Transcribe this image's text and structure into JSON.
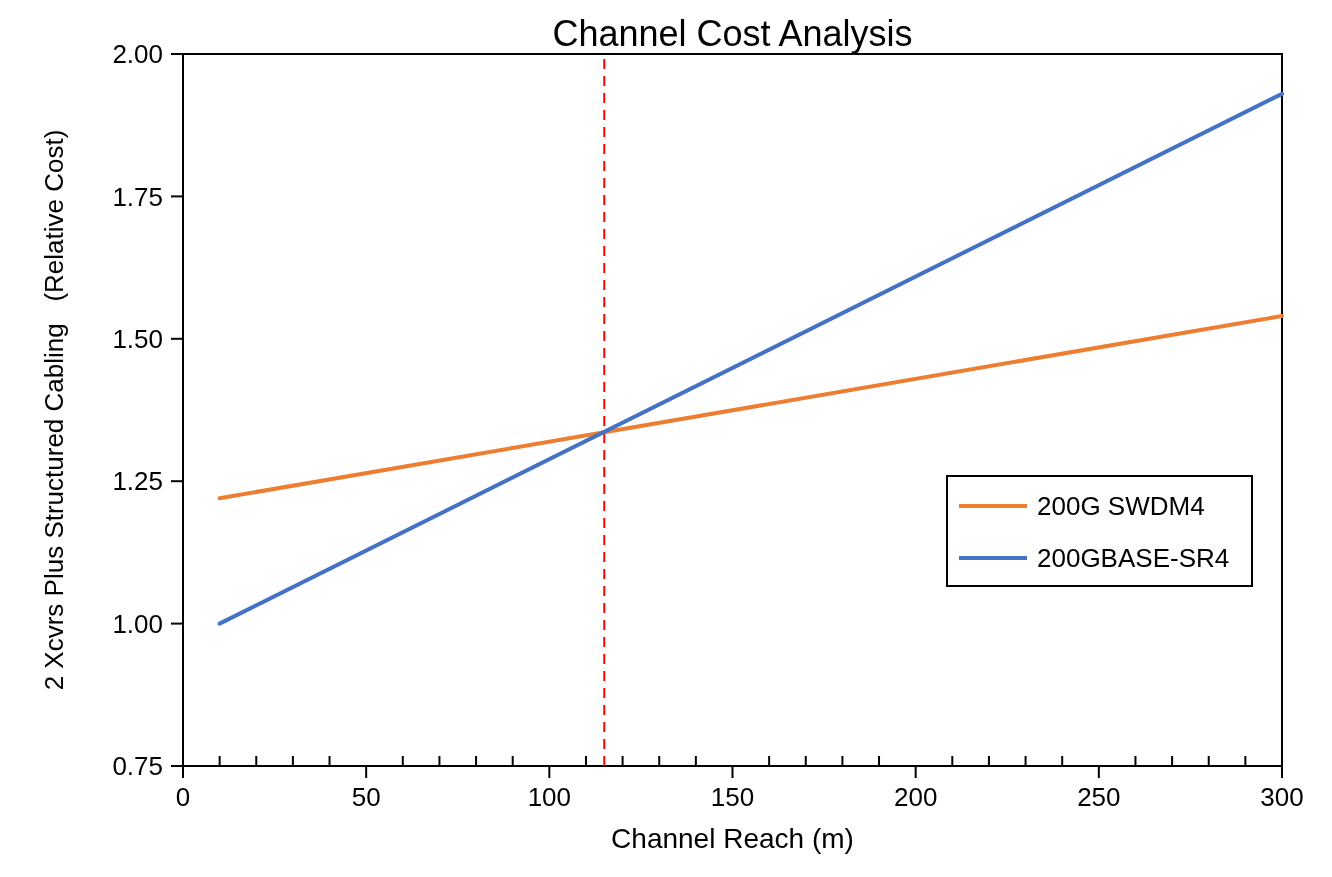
{
  "chart_data": {
    "type": "line",
    "title": "Channel Cost Analysis",
    "xlabel": "Channel Reach (m)",
    "ylabel": "2 Xcvrs Plus Structured Cabling   (Relative Cost)",
    "xlim": [
      0,
      300
    ],
    "ylim": [
      0.75,
      2.0
    ],
    "xticks": [
      0,
      {
        "value": 10,
        "label": null
      },
      {
        "value": 20,
        "label": null
      },
      {
        "value": 30,
        "label": null
      },
      {
        "value": 40,
        "label": null
      },
      50,
      {
        "value": 60,
        "label": null
      },
      {
        "value": 70,
        "label": null
      },
      {
        "value": 80,
        "label": null
      },
      {
        "value": 90,
        "label": null
      },
      100,
      {
        "value": 110,
        "label": null
      },
      {
        "value": 120,
        "label": null
      },
      {
        "value": 130,
        "label": null
      },
      {
        "value": 140,
        "label": null
      },
      150,
      {
        "value": 160,
        "label": null
      },
      {
        "value": 170,
        "label": null
      },
      {
        "value": 180,
        "label": null
      },
      {
        "value": 190,
        "label": null
      },
      200,
      {
        "value": 210,
        "label": null
      },
      {
        "value": 220,
        "label": null
      },
      {
        "value": 230,
        "label": null
      },
      {
        "value": 240,
        "label": null
      },
      250,
      {
        "value": 260,
        "label": null
      },
      {
        "value": 270,
        "label": null
      },
      {
        "value": 280,
        "label": null
      },
      {
        "value": 290,
        "label": null
      },
      300
    ],
    "yticks": [
      {
        "value": 0.75,
        "label": "0.75"
      },
      {
        "value": 1.0,
        "label": "1.00"
      },
      {
        "value": 1.25,
        "label": "1.25"
      },
      {
        "value": 1.5,
        "label": "1.50"
      },
      {
        "value": 1.75,
        "label": "1.75"
      },
      {
        "value": 2.0,
        "label": "2.00"
      }
    ],
    "x": [
      10,
      300
    ],
    "series": [
      {
        "name": "200G SWDM4",
        "color": "#ed7d31",
        "values": [
          1.22,
          1.54
        ]
      },
      {
        "name": "200GBASE-SR4",
        "color": "#4472c4",
        "values": [
          1.0,
          1.93
        ]
      }
    ],
    "ref_lines": [
      {
        "axis": "x",
        "value": 115,
        "color": "#ff0000",
        "line_style": "dashed"
      }
    ],
    "grid": false,
    "legend": "right",
    "marker": "none",
    "line_style": "solid"
  }
}
